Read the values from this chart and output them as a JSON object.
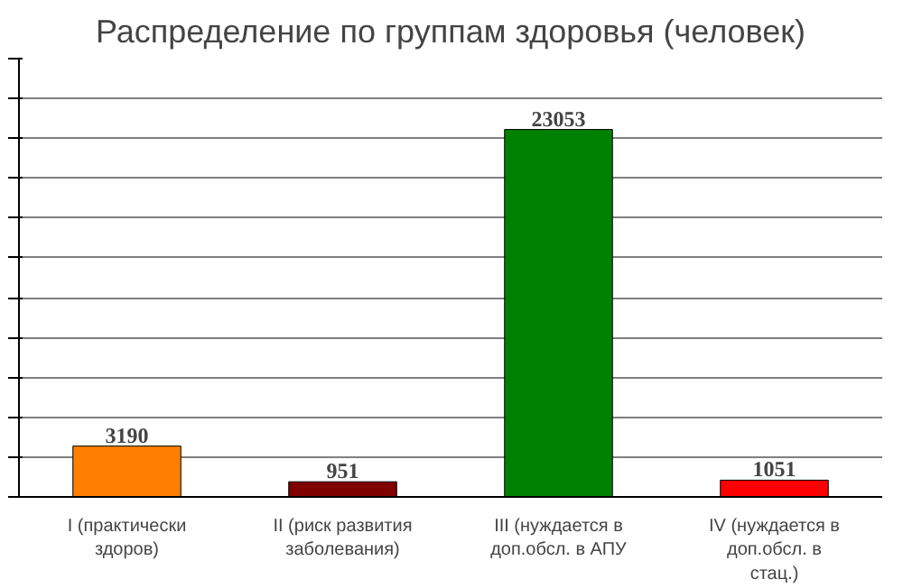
{
  "chart_data": {
    "type": "bar",
    "title": "Распределение по группам здоровья (человек)",
    "categories": [
      "I (практически здоров)",
      "II (риск развития заболевания)",
      "III (нуждается в доп.обсл. в АПУ",
      "IV (нуждается в доп.обсл. в стац.)"
    ],
    "values": [
      3190,
      951,
      23053,
      1051
    ],
    "colors": [
      "#ff8000",
      "#800000",
      "#008000",
      "#ff0000"
    ],
    "ylim": [
      0,
      27500
    ],
    "yticks": [
      {
        "value": 0,
        "label": null
      },
      {
        "value": 2500,
        "label": null
      },
      {
        "value": 5000,
        "label": null
      },
      {
        "value": 7500,
        "label": null
      },
      {
        "value": 10000,
        "label": null
      },
      {
        "value": 12500,
        "label": null
      },
      {
        "value": 15000,
        "label": null
      },
      {
        "value": 17500,
        "label": null
      },
      {
        "value": 20000,
        "label": null
      },
      {
        "value": 22500,
        "label": null
      },
      {
        "value": 25000,
        "label": null
      },
      {
        "value": 27500,
        "label": null
      }
    ],
    "grid": "y",
    "data_labels": true,
    "tick_labels": "x"
  }
}
